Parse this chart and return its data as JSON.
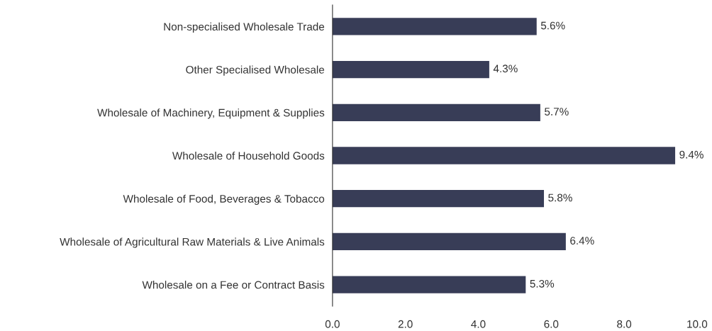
{
  "chart_data": {
    "type": "bar",
    "orientation": "horizontal",
    "categories": [
      "Non-specialised Wholesale Trade",
      "Other Specialised Wholesale",
      "Wholesale of Machinery, Equipment & Supplies",
      "Wholesale of Household Goods",
      "Wholesale of Food, Beverages & Tobacco",
      "Wholesale of Agricultural Raw Materials & Live Animals",
      "Wholesale on a Fee or Contract Basis"
    ],
    "values": [
      5.6,
      4.3,
      5.7,
      9.4,
      5.8,
      6.4,
      5.3
    ],
    "value_labels": [
      "5.6%",
      "4.3%",
      "5.7%",
      "9.4%",
      "5.8%",
      "6.4%",
      "5.3%"
    ],
    "color": "#383d57",
    "xlim": [
      0,
      10
    ],
    "xticks": [
      {
        "value": 0,
        "label": "0.0"
      },
      {
        "value": 2,
        "label": "2.0"
      },
      {
        "value": 4,
        "label": "4.0"
      },
      {
        "value": 6,
        "label": "6.0"
      },
      {
        "value": 8,
        "label": "8.0"
      },
      {
        "value": 10,
        "label": "10.0"
      }
    ],
    "grid": false,
    "legend": false
  }
}
